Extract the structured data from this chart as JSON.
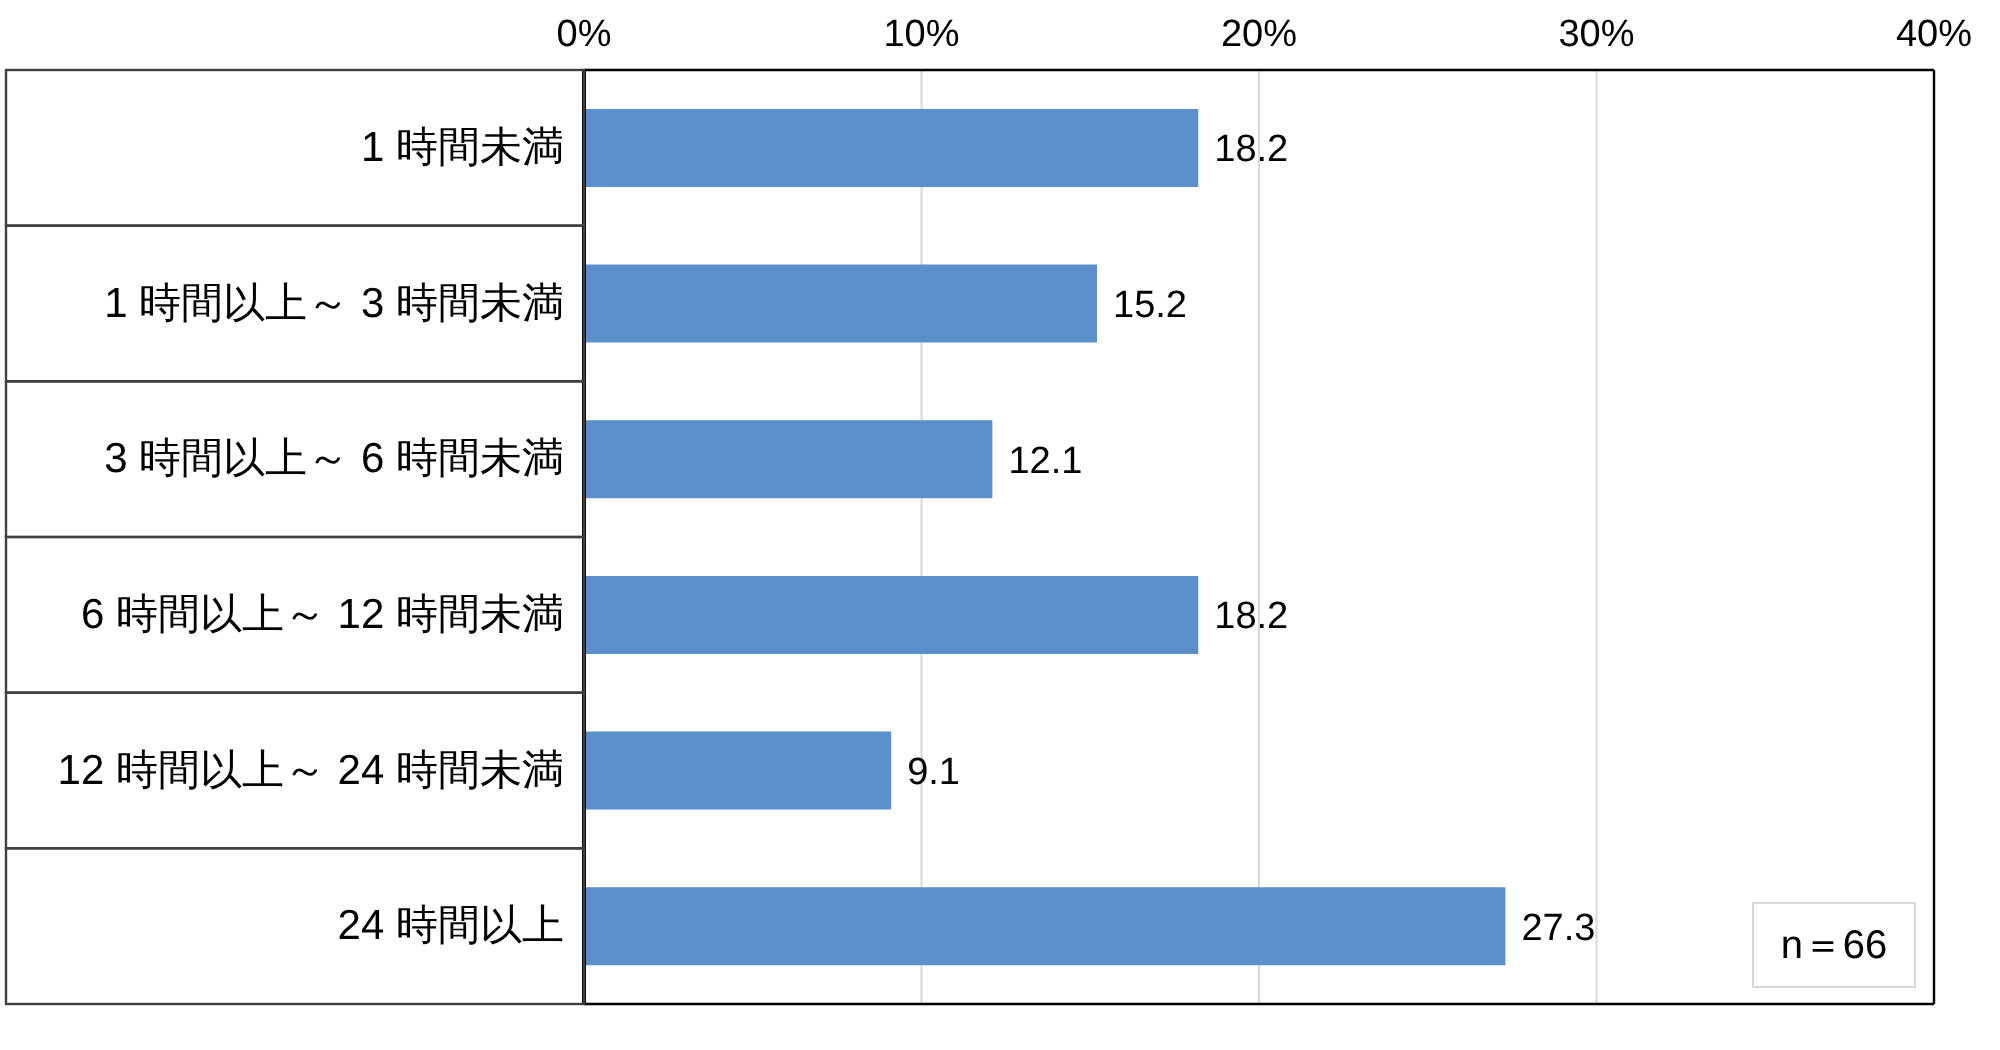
{
  "chart_data": {
    "type": "bar",
    "orientation": "horizontal",
    "categories": [
      "1 時間未満",
      "1 時間以上～ 3 時間未満",
      "3 時間以上～ 6 時間未満",
      "6 時間以上～ 12 時間未満",
      "12 時間以上～ 24 時間未満",
      "24 時間以上"
    ],
    "values": [
      18.2,
      15.2,
      12.1,
      18.2,
      9.1,
      27.3
    ],
    "color": "#5b8fcb",
    "xlim": [
      0,
      40
    ],
    "xticks": [
      {
        "value": 0,
        "label": "0%"
      },
      {
        "value": 10,
        "label": "10%"
      },
      {
        "value": 20,
        "label": "20%"
      },
      {
        "value": 30,
        "label": "30%"
      },
      {
        "value": 40,
        "label": "40%"
      }
    ],
    "grid": "x",
    "data_labels": true,
    "annotations": [
      "n＝66"
    ]
  }
}
